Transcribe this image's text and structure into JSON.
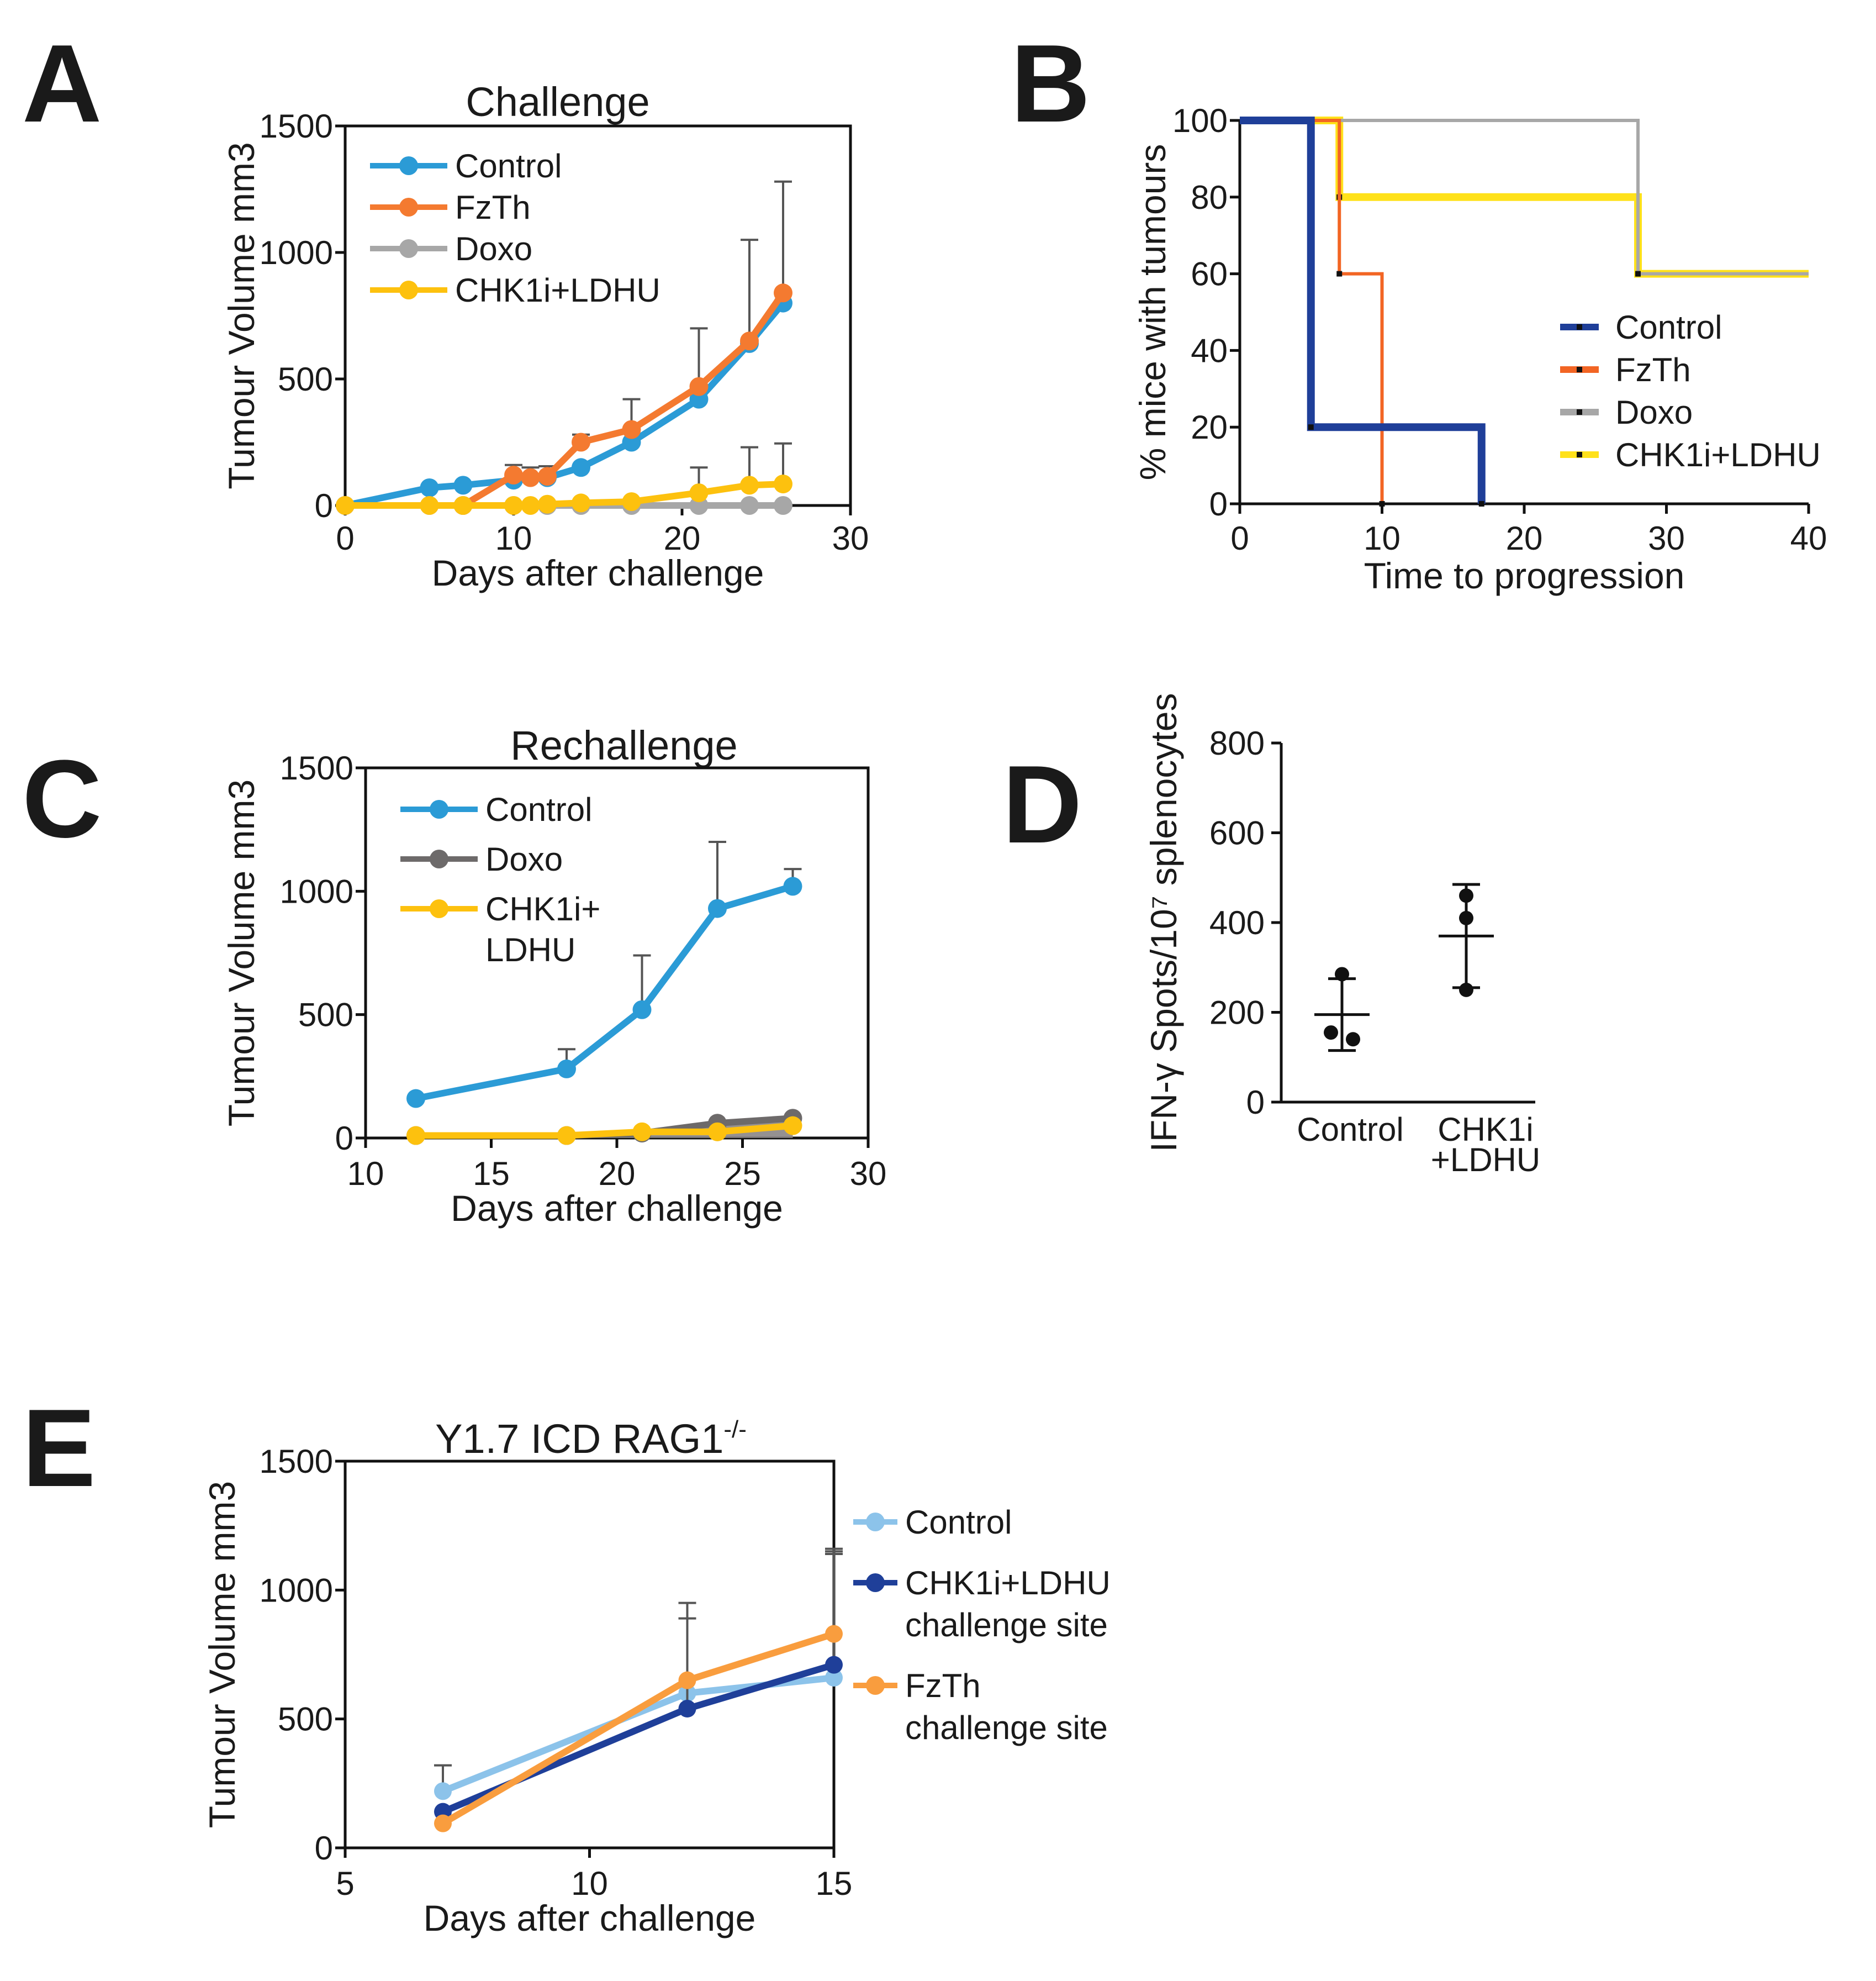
{
  "chart_data": [
    {
      "panel": "A",
      "type": "line",
      "title": "Challenge",
      "xlabel": "Days after challenge",
      "ylabel": "Tumour Volume mm3",
      "xlim": [
        0,
        30
      ],
      "ylim": [
        0,
        1500
      ],
      "xticks": [
        0,
        10,
        20,
        30
      ],
      "yticks": [
        0,
        500,
        1000,
        1500
      ],
      "legend_position": "top-left",
      "series": [
        {
          "name": "Control",
          "color": "#2b9bd6",
          "marker": true,
          "x": [
            0,
            5,
            7,
            10,
            12,
            14,
            17,
            21,
            24,
            26
          ],
          "y": [
            0,
            70,
            80,
            100,
            110,
            150,
            250,
            420,
            640,
            800
          ],
          "err": [
            0,
            0,
            0,
            0,
            0,
            0,
            0,
            0,
            0,
            0
          ]
        },
        {
          "name": "FzTh",
          "color": "#f47a30",
          "marker": true,
          "x": [
            0,
            7,
            10,
            11,
            12,
            14,
            17,
            21,
            24,
            26
          ],
          "y": [
            0,
            0,
            120,
            110,
            115,
            250,
            300,
            470,
            650,
            840
          ],
          "err": [
            0,
            0,
            40,
            40,
            40,
            30,
            120,
            230,
            400,
            440
          ]
        },
        {
          "name": "Doxo",
          "color": "#a7a7a7",
          "marker": true,
          "x": [
            0,
            5,
            7,
            10,
            12,
            14,
            17,
            21,
            24,
            26
          ],
          "y": [
            0,
            0,
            0,
            0,
            0,
            0,
            0,
            0,
            0,
            0
          ],
          "err": [
            0,
            0,
            0,
            0,
            0,
            0,
            0,
            0,
            0,
            0
          ]
        },
        {
          "name": "CHK1i+LDHU",
          "color": "#fdc10e",
          "marker": true,
          "x": [
            0,
            5,
            7,
            10,
            11,
            12,
            14,
            17,
            21,
            24,
            26
          ],
          "y": [
            0,
            0,
            0,
            0,
            0,
            5,
            10,
            15,
            50,
            80,
            85
          ],
          "err": [
            0,
            0,
            0,
            0,
            0,
            0,
            0,
            0,
            100,
            150,
            160
          ]
        }
      ]
    },
    {
      "panel": "B",
      "type": "line",
      "subtype": "step",
      "title": "",
      "xlabel": "Time to progression",
      "ylabel": "% mice with tumours",
      "xlim": [
        0,
        40
      ],
      "ylim": [
        0,
        100
      ],
      "xticks": [
        0,
        10,
        20,
        30,
        40
      ],
      "yticks": [
        0,
        20,
        40,
        60,
        80,
        100
      ],
      "legend_position": "middle-right",
      "series": [
        {
          "name": "Control",
          "color": "#1f3f99",
          "x": [
            0,
            5,
            5,
            17,
            17
          ],
          "y": [
            100,
            100,
            20,
            20,
            0
          ]
        },
        {
          "name": "FzTh",
          "color": "#f26524",
          "x": [
            0,
            7,
            7,
            10,
            10
          ],
          "y": [
            100,
            100,
            60,
            60,
            0
          ]
        },
        {
          "name": "Doxo",
          "color": "#a7a7a7",
          "x": [
            0,
            28,
            28,
            40
          ],
          "y": [
            100,
            100,
            60,
            60
          ]
        },
        {
          "name": "CHK1i+LDHU",
          "color": "#ffe11a",
          "x": [
            0,
            7,
            7,
            28,
            28,
            40
          ],
          "y": [
            100,
            100,
            80,
            80,
            60,
            60
          ]
        }
      ]
    },
    {
      "panel": "C",
      "type": "line",
      "title": "Rechallenge",
      "xlabel": "Days after challenge",
      "ylabel": "Tumour Volume mm3",
      "xlim": [
        10,
        30
      ],
      "ylim": [
        0,
        1500
      ],
      "xticks": [
        10,
        15,
        20,
        25,
        30
      ],
      "yticks": [
        0,
        500,
        1000,
        1500
      ],
      "legend_position": "top-left",
      "series": [
        {
          "name": "Control",
          "color": "#2b9bd6",
          "marker": true,
          "x": [
            12,
            18,
            21,
            24,
            27
          ],
          "y": [
            160,
            280,
            520,
            930,
            1020
          ],
          "err": [
            0,
            80,
            220,
            270,
            70
          ]
        },
        {
          "name": "Doxo",
          "color": "#6d6a6a",
          "marker": true,
          "x": [
            12,
            18,
            21,
            24,
            27
          ],
          "y": [
            10,
            10,
            20,
            60,
            80
          ],
          "err": [
            0,
            0,
            0,
            0,
            0
          ]
        },
        {
          "name": "CHK1i+ LDHU",
          "legend_lines": [
            "CHK1i+",
            "LDHU"
          ],
          "color": "#fdc10e",
          "marker": true,
          "x": [
            12,
            18,
            21,
            24,
            27
          ],
          "y": [
            10,
            10,
            25,
            25,
            50
          ],
          "err": [
            0,
            0,
            0,
            0,
            0
          ]
        }
      ]
    },
    {
      "panel": "D",
      "type": "scatter",
      "title": "",
      "xlabel": "",
      "ylabel": "IFN-γ Spots/10⁷ splenocytes",
      "ylim": [
        0,
        800
      ],
      "yticks": [
        0,
        200,
        400,
        600,
        800
      ],
      "categories": [
        "Control",
        "CHK1i +LDHU"
      ],
      "category_lines": [
        [
          "Control"
        ],
        [
          "CHK1i",
          "+LDHU"
        ]
      ],
      "groups": [
        {
          "name": "Control",
          "points": [
            285,
            155,
            140
          ],
          "mean": 195,
          "sd_upper": 275,
          "sd_lower": 115
        },
        {
          "name": "CHK1i +LDHU",
          "points": [
            460,
            410,
            250
          ],
          "mean": 370,
          "sd_upper": 485,
          "sd_lower": 255
        }
      ]
    },
    {
      "panel": "E",
      "type": "line",
      "title": "Y1.7 ICD RAG1",
      "title_superscript": "-/-",
      "xlabel": "Days after challenge",
      "ylabel": "Tumour Volume mm3",
      "xlim": [
        5,
        15
      ],
      "ylim": [
        0,
        1500
      ],
      "xticks": [
        5,
        10,
        15
      ],
      "yticks": [
        0,
        500,
        1000,
        1500
      ],
      "legend_position": "outside-right",
      "series": [
        {
          "name": "Control",
          "legend_lines": [
            "Control"
          ],
          "color": "#8cc3ea",
          "marker": true,
          "x": [
            7,
            12,
            15
          ],
          "y": [
            220,
            600,
            660
          ],
          "err": [
            100,
            0,
            480
          ]
        },
        {
          "name": "CHK1i+LDHU challenge site",
          "legend_lines": [
            "CHK1i+LDHU",
            "challenge site"
          ],
          "color": "#1f3f99",
          "marker": true,
          "x": [
            7,
            12,
            15
          ],
          "y": [
            140,
            540,
            710
          ],
          "err": [
            0,
            350,
            450
          ]
        },
        {
          "name": "FzTh challenge site",
          "legend_lines": [
            "FzTh",
            "challenge site"
          ],
          "color": "#f99d3e",
          "marker": true,
          "x": [
            7,
            12,
            15
          ],
          "y": [
            95,
            650,
            830
          ],
          "err": [
            0,
            300,
            320
          ]
        }
      ]
    }
  ],
  "panel_letters": [
    "A",
    "B",
    "C",
    "D",
    "E"
  ]
}
